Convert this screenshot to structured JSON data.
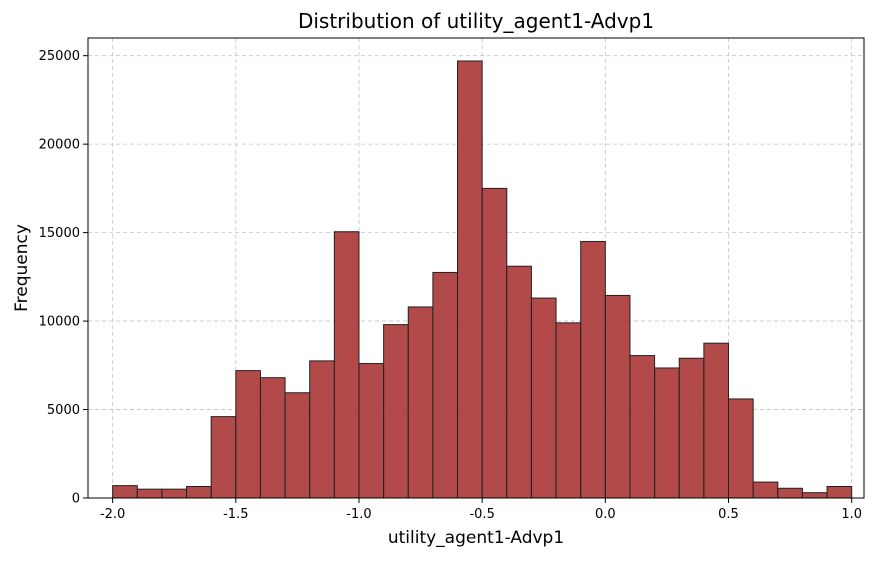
{
  "chart_data": {
    "type": "bar",
    "title": "Distribution of utility_agent1-Advp1",
    "xlabel": "utility_agent1-Advp1",
    "ylabel": "Frequency",
    "xlim": [
      -2.1,
      1.05
    ],
    "ylim": [
      0,
      26000
    ],
    "grid": true,
    "bar_color": "#a52a2a",
    "bar_edge_color": "#222222",
    "x_ticks": [
      -2.0,
      -1.5,
      -1.0,
      -0.5,
      0.0,
      0.5,
      1.0
    ],
    "x_tick_labels": [
      "-2.0",
      "-1.5",
      "-1.0",
      "-0.5",
      "0.0",
      "0.5",
      "1.0"
    ],
    "y_ticks": [
      0,
      5000,
      10000,
      15000,
      20000,
      25000
    ],
    "y_tick_labels": [
      "0",
      "5000",
      "10000",
      "15000",
      "20000",
      "25000"
    ],
    "bin_edges": [
      -2.0,
      -1.9,
      -1.8,
      -1.7,
      -1.6,
      -1.5,
      -1.4,
      -1.3,
      -1.2,
      -1.1,
      -1.0,
      -0.9,
      -0.8,
      -0.7,
      -0.6,
      -0.5,
      -0.4,
      -0.3,
      -0.2,
      -0.1,
      0.0,
      0.1,
      0.2,
      0.3,
      0.4,
      0.5,
      0.6,
      0.7,
      0.8,
      0.9,
      1.0
    ],
    "values": [
      700,
      500,
      500,
      650,
      4600,
      7200,
      6800,
      5950,
      7750,
      15050,
      7600,
      9800,
      10800,
      12750,
      24700,
      17500,
      13100,
      11300,
      9900,
      14500,
      11450,
      8050,
      7350,
      7900,
      8750,
      5600,
      900,
      550,
      300,
      650
    ]
  }
}
